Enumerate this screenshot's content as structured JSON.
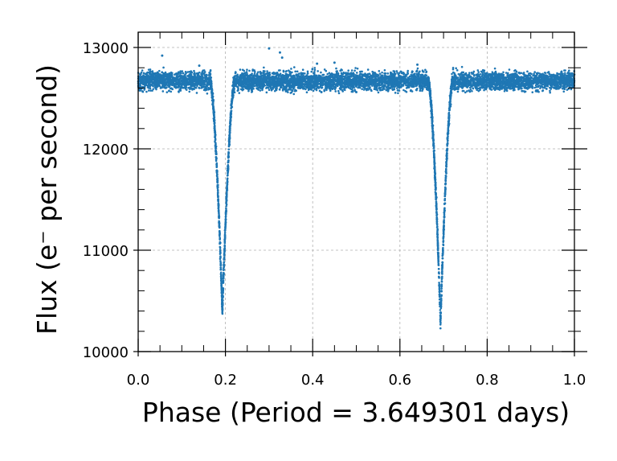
{
  "chart_data": {
    "type": "scatter",
    "title": "",
    "xlabel": "Phase (Period = 3.649301 days)",
    "ylabel": "Flux (e⁻ per second)",
    "xlim": [
      0.0,
      1.0
    ],
    "ylim": [
      10000,
      13100
    ],
    "x_ticks": [
      0.0,
      0.2,
      0.4,
      0.6,
      0.8,
      1.0
    ],
    "x_tick_labels": [
      "0.0",
      "0.2",
      "0.4",
      "0.6",
      "0.8",
      "1.0"
    ],
    "y_ticks": [
      10000,
      11000,
      12000,
      13000
    ],
    "y_tick_labels": [
      "10000",
      "11000",
      "12000",
      "13000"
    ],
    "grid": true,
    "legend": false,
    "marker_color": "#1f77b4",
    "baseline_flux": 12670,
    "baseline_scatter": 45,
    "eclipses": [
      {
        "center_phase": 0.193,
        "min_flux": 10400,
        "half_width_phase": 0.028
      },
      {
        "center_phase": 0.693,
        "min_flux": 10290,
        "half_width_phase": 0.028
      }
    ],
    "outliers": [
      {
        "x": 0.055,
        "y": 12920
      },
      {
        "x": 0.3,
        "y": 12990
      },
      {
        "x": 0.325,
        "y": 12950
      },
      {
        "x": 0.33,
        "y": 12900
      },
      {
        "x": 0.41,
        "y": 12840
      },
      {
        "x": 0.45,
        "y": 12850
      },
      {
        "x": 0.64,
        "y": 12830
      },
      {
        "x": 0.14,
        "y": 12820
      },
      {
        "x": 0.42,
        "y": 12560
      },
      {
        "x": 0.5,
        "y": 12560
      },
      {
        "x": 0.88,
        "y": 12570
      }
    ]
  }
}
